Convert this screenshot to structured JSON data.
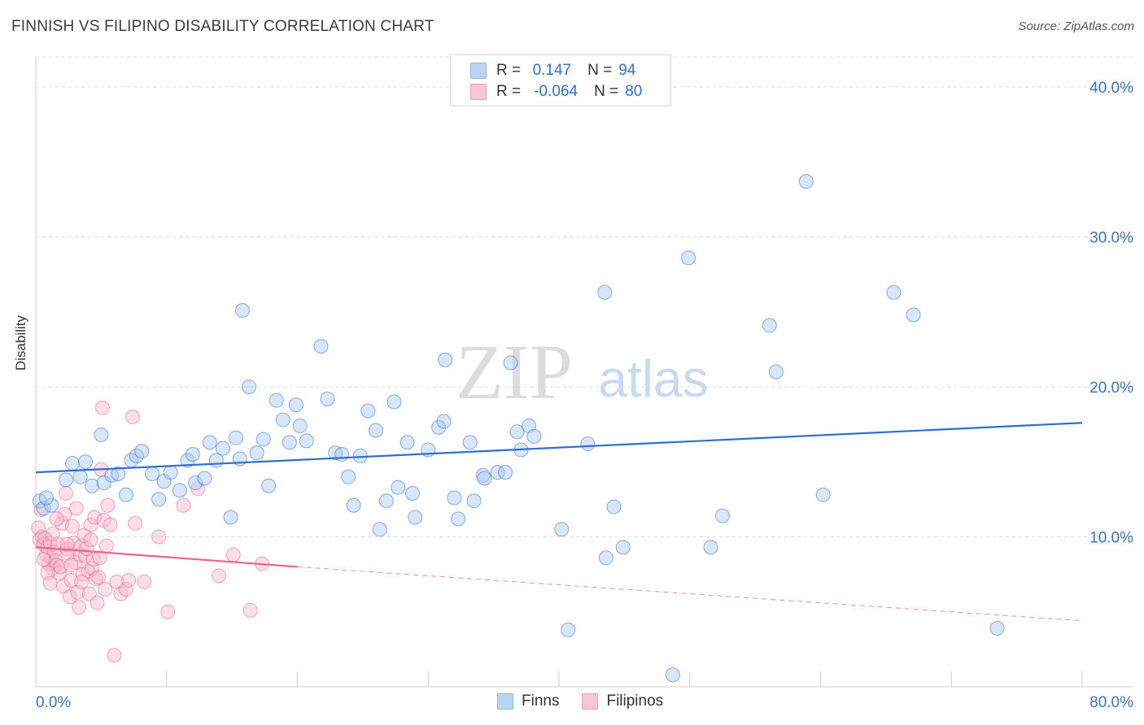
{
  "title": "FINNISH VS FILIPINO DISABILITY CORRELATION CHART",
  "source": "Source: ZipAtlas.com",
  "watermark": {
    "zip": "ZIP",
    "atlas": "atlas"
  },
  "legend": {
    "rows": [
      {
        "r_label": "R =",
        "r_value": "0.147",
        "n_label": "N =",
        "n_value": "94"
      },
      {
        "r_label": "R =",
        "r_value": "-0.064",
        "n_label": "N =",
        "n_value": "80"
      }
    ]
  },
  "bottom_legend": {
    "finns": "Finns",
    "filipinos": "Filipinos"
  },
  "colors": {
    "finns": "#2f6fcc",
    "filipinos": "#e8668f",
    "finns_fill": "#a9c7ef",
    "filipinos_fill": "#f7b6cb",
    "grid": "#dddddd",
    "tick_text": "#3b73c9"
  },
  "chart_data": {
    "type": "scatter",
    "ylabel": "Disability",
    "xlim": [
      0,
      80
    ],
    "ylim": [
      0,
      42
    ],
    "x_tick_labels": [
      "0.0%",
      "80.0%"
    ],
    "y_ticks": [
      10,
      20,
      30,
      40
    ],
    "y_tick_labels": [
      "10.0%",
      "20.0%",
      "30.0%",
      "40.0%"
    ],
    "grid": "horizontal dashed",
    "series": [
      {
        "name": "Finns",
        "trend": {
          "x": [
            0,
            80
          ],
          "y": [
            14.3,
            17.6
          ],
          "style": "solid"
        },
        "points": [
          [
            0.3,
            12.4
          ],
          [
            0.6,
            11.9
          ],
          [
            1.2,
            12.1
          ],
          [
            2.3,
            13.8
          ],
          [
            2.8,
            14.9
          ],
          [
            3.4,
            14.0
          ],
          [
            3.8,
            15.0
          ],
          [
            4.3,
            13.4
          ],
          [
            5.2,
            13.6
          ],
          [
            5.8,
            14.1
          ],
          [
            6.3,
            14.2
          ],
          [
            5.0,
            16.8
          ],
          [
            6.9,
            12.8
          ],
          [
            7.3,
            15.1
          ],
          [
            7.7,
            15.4
          ],
          [
            8.1,
            15.7
          ],
          [
            8.9,
            14.2
          ],
          [
            9.4,
            12.5
          ],
          [
            9.8,
            13.7
          ],
          [
            10.3,
            14.3
          ],
          [
            11.0,
            13.1
          ],
          [
            11.6,
            15.1
          ],
          [
            12.0,
            15.5
          ],
          [
            12.2,
            13.6
          ],
          [
            12.9,
            13.9
          ],
          [
            13.3,
            16.3
          ],
          [
            13.8,
            15.1
          ],
          [
            14.3,
            15.9
          ],
          [
            14.9,
            11.3
          ],
          [
            15.3,
            16.6
          ],
          [
            15.6,
            15.2
          ],
          [
            15.8,
            25.1
          ],
          [
            16.3,
            20.0
          ],
          [
            16.9,
            15.6
          ],
          [
            17.4,
            16.5
          ],
          [
            17.8,
            13.4
          ],
          [
            18.4,
            19.1
          ],
          [
            18.9,
            17.8
          ],
          [
            19.4,
            16.3
          ],
          [
            19.9,
            18.8
          ],
          [
            20.2,
            17.4
          ],
          [
            20.7,
            16.4
          ],
          [
            21.8,
            22.7
          ],
          [
            22.3,
            19.2
          ],
          [
            22.9,
            15.6
          ],
          [
            23.4,
            15.5
          ],
          [
            23.9,
            14.0
          ],
          [
            24.3,
            12.1
          ],
          [
            24.8,
            15.4
          ],
          [
            25.4,
            18.4
          ],
          [
            26.0,
            17.1
          ],
          [
            26.3,
            10.5
          ],
          [
            26.8,
            12.4
          ],
          [
            27.4,
            19.0
          ],
          [
            27.7,
            13.3
          ],
          [
            28.4,
            16.3
          ],
          [
            29.0,
            11.3
          ],
          [
            28.8,
            12.9
          ],
          [
            30.0,
            15.8
          ],
          [
            30.8,
            17.3
          ],
          [
            31.2,
            17.7
          ],
          [
            31.3,
            21.8
          ],
          [
            32.0,
            12.6
          ],
          [
            32.3,
            11.2
          ],
          [
            33.2,
            16.3
          ],
          [
            33.5,
            12.4
          ],
          [
            34.2,
            14.1
          ],
          [
            34.3,
            13.9
          ],
          [
            35.3,
            14.3
          ],
          [
            35.9,
            14.3
          ],
          [
            36.3,
            21.6
          ],
          [
            36.8,
            17.0
          ],
          [
            37.1,
            15.8
          ],
          [
            37.7,
            17.4
          ],
          [
            38.1,
            16.7
          ],
          [
            40.2,
            10.5
          ],
          [
            40.7,
            3.8
          ],
          [
            42.2,
            16.2
          ],
          [
            43.5,
            26.3
          ],
          [
            43.6,
            8.6
          ],
          [
            44.2,
            12.0
          ],
          [
            44.9,
            9.3
          ],
          [
            48.7,
            0.8
          ],
          [
            49.9,
            28.6
          ],
          [
            51.6,
            9.3
          ],
          [
            52.5,
            11.4
          ],
          [
            56.1,
            24.1
          ],
          [
            56.6,
            21.0
          ],
          [
            58.9,
            33.7
          ],
          [
            60.2,
            12.8
          ],
          [
            65.6,
            26.3
          ],
          [
            67.1,
            24.8
          ],
          [
            73.5,
            3.9
          ],
          [
            0.8,
            12.6
          ]
        ]
      },
      {
        "name": "Filipinos",
        "trend": {
          "x": [
            0,
            20
          ],
          "y": [
            9.3,
            8.0
          ],
          "style": "solid",
          "extension": {
            "x": [
              20,
              80
            ],
            "y": [
              8.0,
              4.4
            ],
            "style": "dashed"
          }
        },
        "points": [
          [
            0.2,
            10.6
          ],
          [
            0.3,
            9.8
          ],
          [
            0.4,
            11.8
          ],
          [
            0.5,
            10.0
          ],
          [
            0.6,
            9.5
          ],
          [
            0.7,
            9.9
          ],
          [
            0.8,
            8.8
          ],
          [
            0.9,
            9.3
          ],
          [
            1.0,
            8.2
          ],
          [
            1.1,
            9.6
          ],
          [
            1.2,
            8.6
          ],
          [
            1.3,
            7.9
          ],
          [
            1.4,
            9.0
          ],
          [
            1.5,
            8.4
          ],
          [
            1.6,
            8.1
          ],
          [
            1.7,
            9.5
          ],
          [
            1.8,
            7.6
          ],
          [
            1.9,
            8.0
          ],
          [
            2.0,
            10.9
          ],
          [
            2.1,
            6.7
          ],
          [
            2.2,
            11.5
          ],
          [
            2.3,
            12.9
          ],
          [
            2.4,
            9.2
          ],
          [
            2.5,
            8.9
          ],
          [
            2.6,
            6.0
          ],
          [
            2.7,
            7.1
          ],
          [
            2.8,
            10.7
          ],
          [
            2.9,
            9.6
          ],
          [
            3.0,
            8.3
          ],
          [
            3.1,
            11.9
          ],
          [
            3.2,
            6.3
          ],
          [
            3.3,
            5.3
          ],
          [
            3.4,
            8.8
          ],
          [
            3.5,
            9.4
          ],
          [
            3.6,
            7.5
          ],
          [
            3.7,
            10.1
          ],
          [
            3.8,
            8.7
          ],
          [
            3.9,
            9.2
          ],
          [
            4.0,
            7.7
          ],
          [
            4.1,
            6.2
          ],
          [
            4.2,
            10.8
          ],
          [
            4.3,
            7.9
          ],
          [
            4.4,
            8.5
          ],
          [
            4.5,
            11.3
          ],
          [
            4.6,
            7.2
          ],
          [
            4.7,
            5.6
          ],
          [
            4.8,
            7.3
          ],
          [
            4.9,
            8.6
          ],
          [
            5.0,
            14.5
          ],
          [
            5.1,
            18.6
          ],
          [
            5.2,
            11.1
          ],
          [
            5.3,
            6.5
          ],
          [
            5.4,
            9.4
          ],
          [
            5.5,
            12.1
          ],
          [
            5.7,
            10.8
          ],
          [
            6.0,
            2.1
          ],
          [
            6.2,
            7.0
          ],
          [
            6.5,
            6.2
          ],
          [
            6.9,
            6.5
          ],
          [
            7.1,
            7.1
          ],
          [
            7.4,
            18.0
          ],
          [
            7.6,
            10.9
          ],
          [
            8.3,
            7.0
          ],
          [
            9.4,
            10.0
          ],
          [
            10.1,
            5.0
          ],
          [
            11.3,
            12.1
          ],
          [
            12.4,
            13.2
          ],
          [
            14.0,
            7.4
          ],
          [
            15.1,
            8.8
          ],
          [
            16.4,
            5.1
          ],
          [
            17.3,
            8.2
          ],
          [
            1.6,
            11.2
          ],
          [
            2.4,
            9.5
          ],
          [
            0.9,
            7.6
          ],
          [
            1.3,
            10.2
          ],
          [
            2.7,
            8.1
          ],
          [
            3.5,
            7.0
          ],
          [
            4.2,
            9.8
          ],
          [
            1.1,
            6.9
          ],
          [
            0.6,
            8.5
          ]
        ]
      }
    ]
  }
}
